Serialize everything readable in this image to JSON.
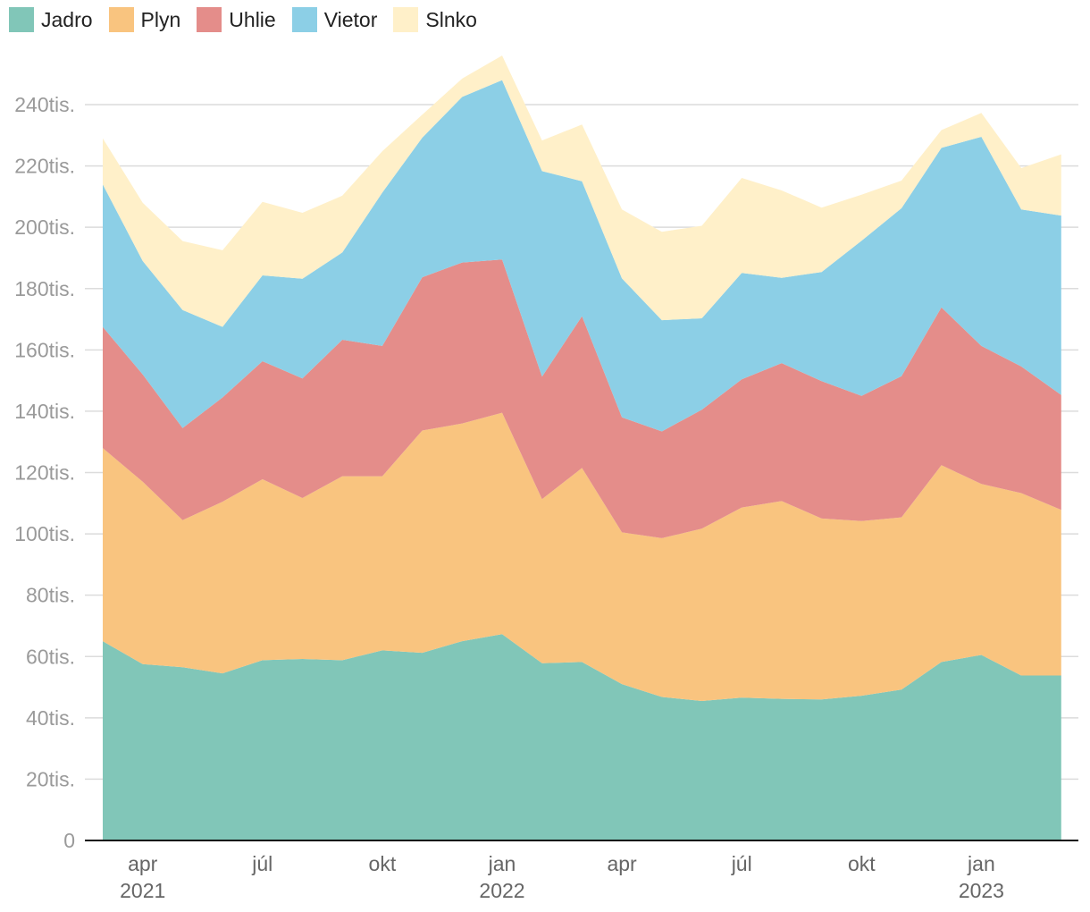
{
  "chart_data": {
    "type": "area",
    "stacked": true,
    "title": "",
    "xlabel": "",
    "ylabel": "",
    "ylim": [
      0,
      260000
    ],
    "y_ticks": [
      {
        "value": 0,
        "label": "0"
      },
      {
        "value": 20000,
        "label": "20tis."
      },
      {
        "value": 40000,
        "label": "40tis."
      },
      {
        "value": 60000,
        "label": "60tis."
      },
      {
        "value": 80000,
        "label": "80tis."
      },
      {
        "value": 100000,
        "label": "100tis."
      },
      {
        "value": 120000,
        "label": "120tis."
      },
      {
        "value": 140000,
        "label": "140tis."
      },
      {
        "value": 160000,
        "label": "160tis."
      },
      {
        "value": 180000,
        "label": "180tis."
      },
      {
        "value": 200000,
        "label": "200tis."
      },
      {
        "value": 220000,
        "label": "220tis."
      },
      {
        "value": 240000,
        "label": "240tis."
      }
    ],
    "x": [
      "2021-03",
      "2021-04",
      "2021-05",
      "2021-06",
      "2021-07",
      "2021-08",
      "2021-09",
      "2021-10",
      "2021-11",
      "2021-12",
      "2022-01",
      "2022-02",
      "2022-03",
      "2022-04",
      "2022-05",
      "2022-06",
      "2022-07",
      "2022-08",
      "2022-09",
      "2022-10",
      "2022-11",
      "2022-12",
      "2023-01",
      "2023-02",
      "2023-03"
    ],
    "x_ticks": [
      {
        "index": 1,
        "month": "apr",
        "year": "2021"
      },
      {
        "index": 4,
        "month": "júl",
        "year": ""
      },
      {
        "index": 7,
        "month": "okt",
        "year": ""
      },
      {
        "index": 10,
        "month": "jan",
        "year": "2022"
      },
      {
        "index": 13,
        "month": "apr",
        "year": ""
      },
      {
        "index": 16,
        "month": "júl",
        "year": ""
      },
      {
        "index": 19,
        "month": "okt",
        "year": ""
      },
      {
        "index": 22,
        "month": "jan",
        "year": "2023"
      }
    ],
    "legend_position": "top-left",
    "series": [
      {
        "name": "Jadro",
        "color": "#81c6b8",
        "values": [
          65000,
          57500,
          56500,
          54500,
          58800,
          59200,
          58800,
          62000,
          61200,
          65000,
          67300,
          57800,
          58200,
          51000,
          46800,
          45500,
          46600,
          46200,
          46000,
          47200,
          49200,
          58200,
          60500,
          53800,
          53800
        ]
      },
      {
        "name": "Plyn",
        "color": "#f9c47f",
        "values": [
          63000,
          59500,
          48000,
          56000,
          59000,
          52500,
          60000,
          56800,
          72500,
          71000,
          72200,
          53500,
          63300,
          49500,
          51800,
          56200,
          62000,
          64500,
          59000,
          57000,
          56200,
          64200,
          55800,
          59500,
          54000
        ]
      },
      {
        "name": "Uhlie",
        "color": "#e48d8a",
        "values": [
          39500,
          35000,
          30000,
          34000,
          38500,
          39000,
          44500,
          42500,
          50000,
          52500,
          50000,
          40000,
          49500,
          37500,
          34800,
          38800,
          41800,
          45000,
          44800,
          40800,
          46000,
          51500,
          45000,
          41300,
          37500
        ]
      },
      {
        "name": "Vietor",
        "color": "#8ccfe6",
        "values": [
          46500,
          37000,
          38500,
          23000,
          28000,
          32500,
          28500,
          50000,
          45500,
          54000,
          58500,
          67000,
          44000,
          45300,
          36300,
          29800,
          34700,
          27800,
          35600,
          50600,
          54800,
          52000,
          68200,
          51200,
          58500
        ]
      },
      {
        "name": "Slnko",
        "color": "#fff0c9",
        "values": [
          15000,
          19000,
          22500,
          25000,
          24000,
          21500,
          18500,
          13500,
          7500,
          6000,
          8000,
          10000,
          18500,
          22500,
          28800,
          30200,
          31000,
          28500,
          21000,
          15000,
          9000,
          5800,
          7800,
          13500,
          20000
        ]
      }
    ]
  }
}
